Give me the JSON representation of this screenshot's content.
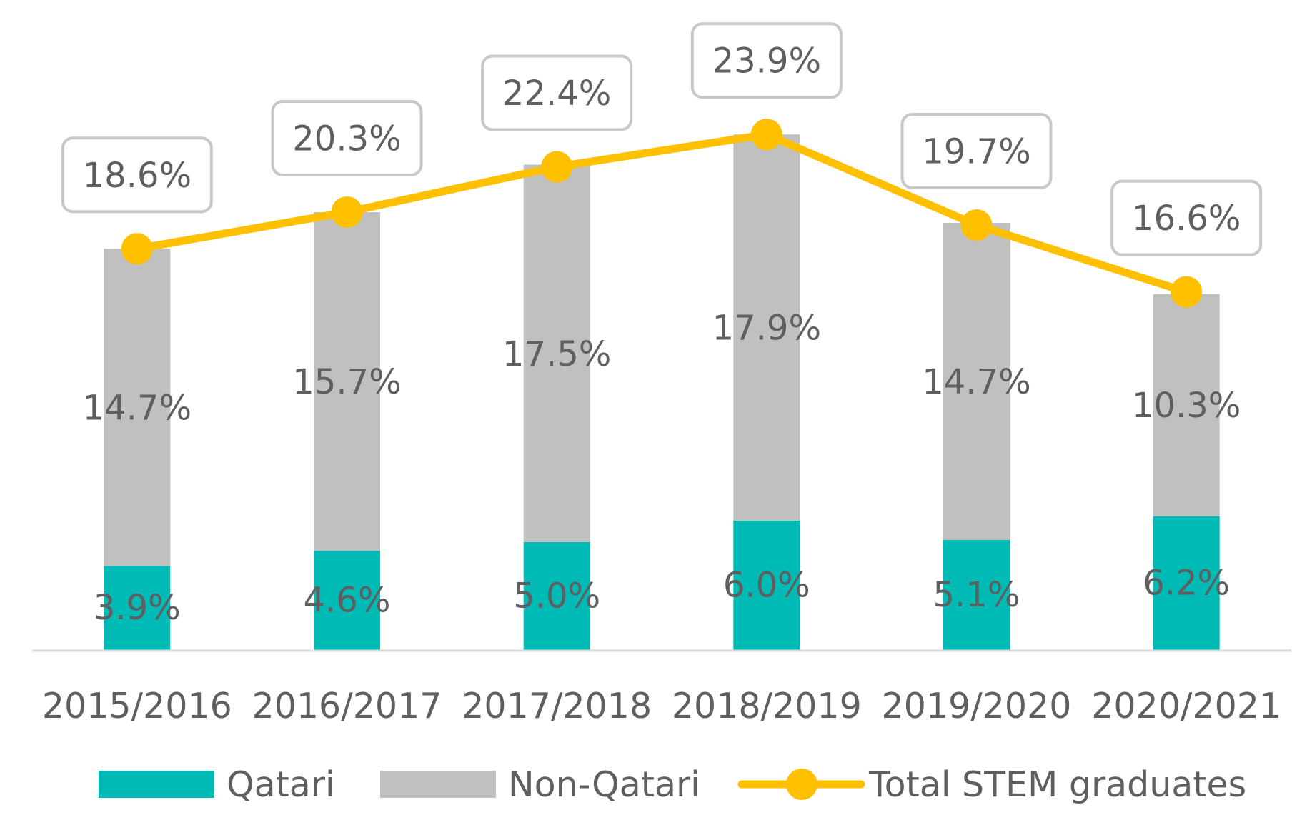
{
  "colors": {
    "qatari": "#00BAB6",
    "non_qatari": "#C0C0C0",
    "total": "#FFC000",
    "text": "#5F5F5F",
    "axis": "#D9D9D9",
    "label_border": "#C8C8C8"
  },
  "chart_data": {
    "type": "bar",
    "stacked": true,
    "title": "",
    "xlabel": "",
    "ylabel": "",
    "ylim": [
      0,
      25
    ],
    "grid": false,
    "legend_position": "bottom",
    "categories": [
      "2015/2016",
      "2016/2017",
      "2017/2018",
      "2018/2019",
      "2019/2020",
      "2020/2021"
    ],
    "series": [
      {
        "name": "Qatari",
        "kind": "bar",
        "values": [
          3.9,
          4.6,
          5.0,
          6.0,
          5.1,
          6.2
        ],
        "labels": [
          "3.9%",
          "4.6%",
          "5.0%",
          "6.0%",
          "5.1%",
          "6.2%"
        ]
      },
      {
        "name": "Non-Qatari",
        "kind": "bar",
        "values": [
          14.7,
          15.7,
          17.5,
          17.9,
          14.7,
          10.3
        ],
        "labels": [
          "14.7%",
          "15.7%",
          "17.5%",
          "17.9%",
          "14.7%",
          "10.3%"
        ]
      },
      {
        "name": "Total STEM graduates",
        "kind": "line",
        "values": [
          18.6,
          20.3,
          22.4,
          23.9,
          19.7,
          16.6
        ],
        "labels": [
          "18.6%",
          "20.3%",
          "22.4%",
          "23.9%",
          "19.7%",
          "16.6%"
        ]
      }
    ]
  }
}
